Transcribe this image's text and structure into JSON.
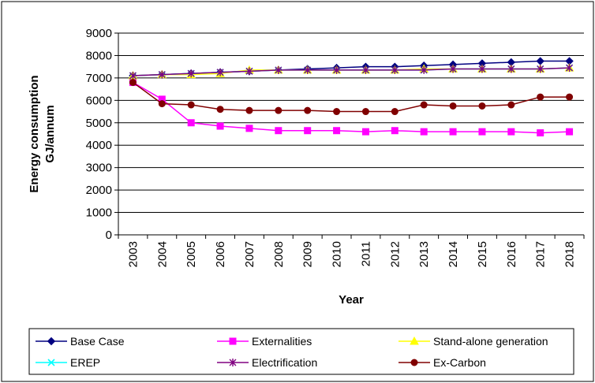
{
  "chart_data": {
    "type": "line",
    "title": "",
    "xlabel": "Year",
    "ylabel_line1": "Energy consumption",
    "ylabel_line2": "GJ/annum",
    "ylim": [
      0,
      9000
    ],
    "yticks": [
      0,
      1000,
      2000,
      3000,
      4000,
      5000,
      6000,
      7000,
      8000,
      9000
    ],
    "grid": "horizontal",
    "legend_position": "bottom",
    "x": [
      "2003",
      "2004",
      "2005",
      "2006",
      "2007",
      "2008",
      "2009",
      "2010",
      "2011",
      "2012",
      "2013",
      "2014",
      "2015",
      "2016",
      "2017",
      "2018"
    ],
    "series": [
      {
        "name": "Base Case",
        "color": "#000080",
        "marker": "diamond",
        "values": [
          7100,
          7150,
          7200,
          7250,
          7300,
          7350,
          7400,
          7450,
          7500,
          7500,
          7550,
          7600,
          7650,
          7700,
          7750,
          7750
        ]
      },
      {
        "name": "Externalities",
        "color": "#FF00FF",
        "marker": "square",
        "values": [
          6800,
          6050,
          5000,
          4850,
          4750,
          4650,
          4650,
          4650,
          4600,
          4650,
          4600,
          4600,
          4600,
          4600,
          4550,
          4600
        ]
      },
      {
        "name": "Stand-alone generation",
        "color": "#FFFF00",
        "marker": "triangle",
        "values": [
          7100,
          7150,
          7150,
          7200,
          7350,
          7350,
          7350,
          7350,
          7350,
          7350,
          7400,
          7400,
          7400,
          7400,
          7400,
          7450
        ]
      },
      {
        "name": "EREP",
        "color": "#00FFFF",
        "marker": "x",
        "values": [
          7100,
          7150,
          7200,
          7250,
          7300,
          7350,
          7350,
          7350,
          7350,
          7350,
          7350,
          7400,
          7400,
          7400,
          7400,
          7450
        ]
      },
      {
        "name": "Electrification",
        "color": "#800080",
        "marker": "star",
        "values": [
          7100,
          7150,
          7200,
          7250,
          7300,
          7350,
          7350,
          7350,
          7350,
          7350,
          7350,
          7400,
          7400,
          7400,
          7400,
          7450
        ]
      },
      {
        "name": "Ex-Carbon",
        "color": "#800000",
        "marker": "circle",
        "values": [
          6800,
          5850,
          5800,
          5600,
          5550,
          5550,
          5550,
          5500,
          5500,
          5500,
          5800,
          5750,
          5750,
          5800,
          6150,
          6150
        ]
      }
    ]
  }
}
